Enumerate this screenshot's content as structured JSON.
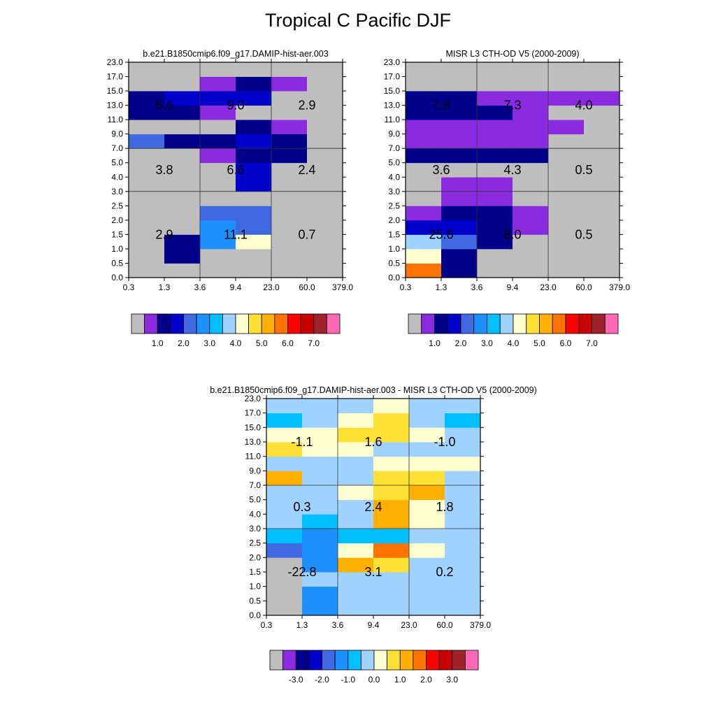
{
  "figure": {
    "title": "Tropical C Pacific DJF"
  },
  "palette": [
    "#bebebe",
    "#8a2be2",
    "#00008b",
    "#0000cd",
    "#4169e1",
    "#1e90ff",
    "#00bfff",
    "#a0d2ff",
    "#ffffd0",
    "#ffe135",
    "#ffb000",
    "#ff7400",
    "#ff0000",
    "#c80000",
    "#a0222a",
    "#ff69b4"
  ],
  "chart_data": [
    {
      "type": "heatmap",
      "title": "b.e21.B1850cmip6.f09_g17.DAMIP-hist-aer.003",
      "x_ticks": [
        "0.3",
        "1.3",
        "3.6",
        "9.4",
        "23.0",
        "60.0",
        "379.0"
      ],
      "y_ticks": [
        "0.0",
        "0.5",
        "1.0",
        "1.5",
        "2.0",
        "2.5",
        "3.0",
        "4.0",
        "5.0",
        "7.0",
        "9.0",
        "11.0",
        "13.0",
        "15.0",
        "17.0",
        "23.0"
      ],
      "cells_order": "rows bottom(0.0-0.5) to top(17.0-23.0); each row 6 optical-depth bins; value = colour level index",
      "cells": [
        [
          0,
          0,
          0,
          0,
          0,
          0
        ],
        [
          0,
          2,
          0,
          0,
          0,
          0
        ],
        [
          0,
          2,
          5,
          8,
          0,
          0
        ],
        [
          0,
          0,
          5,
          4,
          0,
          0
        ],
        [
          0,
          0,
          4,
          4,
          0,
          0
        ],
        [
          0,
          0,
          0,
          0,
          0,
          0
        ],
        [
          0,
          0,
          0,
          3,
          0,
          0
        ],
        [
          0,
          0,
          0,
          3,
          0,
          0
        ],
        [
          0,
          0,
          1,
          2,
          2,
          0
        ],
        [
          4,
          2,
          2,
          3,
          2,
          0
        ],
        [
          0,
          0,
          0,
          2,
          1,
          0
        ],
        [
          2,
          2,
          1,
          0,
          0,
          0
        ],
        [
          2,
          3,
          3,
          3,
          0,
          0
        ],
        [
          0,
          0,
          1,
          2,
          1,
          0
        ],
        [
          0,
          0,
          0,
          0,
          0,
          0
        ]
      ],
      "annotations": [
        {
          "x_bin": "0.3-3.6",
          "y_bin": "7.0-23.0",
          "text": "6.6"
        },
        {
          "x_bin": "3.6-23.0",
          "y_bin": "7.0-23.0",
          "text": "9.0"
        },
        {
          "x_bin": "23.0-379.0",
          "y_bin": "7.0-23.0",
          "text": "2.9"
        },
        {
          "x_bin": "0.3-3.6",
          "y_bin": "3.0-7.0",
          "text": "3.8"
        },
        {
          "x_bin": "3.6-23.0",
          "y_bin": "3.0-7.0",
          "text": "6.6"
        },
        {
          "x_bin": "23.0-379.0",
          "y_bin": "3.0-7.0",
          "text": "2.4"
        },
        {
          "x_bin": "0.3-3.6",
          "y_bin": "0.0-3.0",
          "text": "2.9"
        },
        {
          "x_bin": "3.6-23.0",
          "y_bin": "0.0-3.0",
          "text": "11.1"
        },
        {
          "x_bin": "23.0-379.0",
          "y_bin": "0.0-3.0",
          "text": "0.7"
        }
      ],
      "colorbar_labels": [
        "1.0",
        "2.0",
        "3.0",
        "4.0",
        "5.0",
        "6.0",
        "7.0"
      ]
    },
    {
      "type": "heatmap",
      "title": "MISR L3 CTH-OD V5 (2000-2009)",
      "x_ticks": [
        "0.3",
        "1.3",
        "3.6",
        "9.4",
        "23.0",
        "60.0",
        "379.0"
      ],
      "y_ticks": [
        "0.0",
        "0.5",
        "1.0",
        "1.5",
        "2.0",
        "2.5",
        "3.0",
        "4.0",
        "5.0",
        "7.0",
        "9.0",
        "11.0",
        "13.0",
        "15.0",
        "17.0",
        "23.0"
      ],
      "cells_order": "rows bottom(0.0-0.5) to top(17.0-23.0); each row 6 optical-depth bins; value = colour level index",
      "cells": [
        [
          11,
          2,
          0,
          0,
          0,
          0
        ],
        [
          8,
          2,
          0,
          0,
          0,
          0
        ],
        [
          7,
          4,
          2,
          0,
          0,
          0
        ],
        [
          3,
          3,
          2,
          1,
          0,
          0
        ],
        [
          1,
          2,
          2,
          1,
          0,
          0
        ],
        [
          0,
          1,
          1,
          0,
          0,
          0
        ],
        [
          0,
          1,
          1,
          0,
          0,
          0
        ],
        [
          0,
          0,
          0,
          0,
          0,
          0
        ],
        [
          2,
          2,
          2,
          2,
          0,
          0
        ],
        [
          1,
          1,
          1,
          1,
          0,
          0
        ],
        [
          1,
          1,
          1,
          1,
          1,
          0
        ],
        [
          2,
          2,
          2,
          1,
          0,
          0
        ],
        [
          2,
          2,
          1,
          1,
          1,
          1
        ],
        [
          0,
          0,
          0,
          0,
          0,
          0
        ],
        [
          0,
          0,
          0,
          0,
          0,
          0
        ]
      ],
      "annotations": [
        {
          "x_bin": "0.3-3.6",
          "y_bin": "7.0-23.0",
          "text": "7.8"
        },
        {
          "x_bin": "3.6-23.0",
          "y_bin": "7.0-23.0",
          "text": "7.3"
        },
        {
          "x_bin": "23.0-379.0",
          "y_bin": "7.0-23.0",
          "text": "4.0"
        },
        {
          "x_bin": "0.3-3.6",
          "y_bin": "3.0-7.0",
          "text": "3.6"
        },
        {
          "x_bin": "3.6-23.0",
          "y_bin": "3.0-7.0",
          "text": "4.3"
        },
        {
          "x_bin": "23.0-379.0",
          "y_bin": "3.0-7.0",
          "text": "0.5"
        },
        {
          "x_bin": "0.3-3.6",
          "y_bin": "0.0-3.0",
          "text": "25.6"
        },
        {
          "x_bin": "3.6-23.0",
          "y_bin": "0.0-3.0",
          "text": "8.0"
        },
        {
          "x_bin": "23.0-379.0",
          "y_bin": "0.0-3.0",
          "text": "0.5"
        }
      ],
      "colorbar_labels": [
        "1.0",
        "2.0",
        "3.0",
        "4.0",
        "5.0",
        "6.0",
        "7.0"
      ]
    },
    {
      "type": "heatmap",
      "title": "b.e21.B1850cmip6.f09_g17.DAMIP-hist-aer.003 - MISR L3 CTH-OD V5 (2000-2009)",
      "x_ticks": [
        "0.3",
        "1.3",
        "3.6",
        "9.4",
        "23.0",
        "60.0",
        "379.0"
      ],
      "y_ticks": [
        "0.0",
        "0.5",
        "1.0",
        "1.5",
        "2.0",
        "2.5",
        "3.0",
        "4.0",
        "5.0",
        "7.0",
        "9.0",
        "11.0",
        "13.0",
        "15.0",
        "17.0",
        "23.0"
      ],
      "cells_order": "rows bottom(0.0-0.5) to top(17.0-23.0); each row 6 optical-depth bins; value = colour level index",
      "cells": [
        [
          0,
          5,
          7,
          7,
          7,
          7
        ],
        [
          0,
          5,
          7,
          7,
          7,
          7
        ],
        [
          0,
          7,
          7,
          7,
          7,
          7
        ],
        [
          0,
          5,
          10,
          9,
          7,
          7
        ],
        [
          4,
          5,
          8,
          11,
          8,
          7
        ],
        [
          6,
          5,
          6,
          6,
          7,
          7
        ],
        [
          7,
          6,
          7,
          10,
          8,
          7
        ],
        [
          7,
          7,
          7,
          10,
          8,
          7
        ],
        [
          7,
          7,
          8,
          9,
          10,
          7
        ],
        [
          10,
          7,
          7,
          9,
          9,
          7
        ],
        [
          7,
          7,
          7,
          8,
          8,
          8
        ],
        [
          9,
          8,
          8,
          7,
          7,
          7
        ],
        [
          8,
          8,
          9,
          9,
          8,
          7
        ],
        [
          6,
          7,
          8,
          9,
          7,
          6
        ],
        [
          7,
          7,
          7,
          8,
          7,
          7
        ]
      ],
      "annotations": [
        {
          "x_bin": "0.3-3.6",
          "y_bin": "7.0-23.0",
          "text": "-1.1"
        },
        {
          "x_bin": "3.6-23.0",
          "y_bin": "7.0-23.0",
          "text": "1.6"
        },
        {
          "x_bin": "23.0-379.0",
          "y_bin": "7.0-23.0",
          "text": "-1.0"
        },
        {
          "x_bin": "0.3-3.6",
          "y_bin": "3.0-7.0",
          "text": "0.3"
        },
        {
          "x_bin": "3.6-23.0",
          "y_bin": "3.0-7.0",
          "text": "2.4"
        },
        {
          "x_bin": "23.0-379.0",
          "y_bin": "3.0-7.0",
          "text": "1.8"
        },
        {
          "x_bin": "0.3-3.6",
          "y_bin": "0.0-3.0",
          "text": "-22.8"
        },
        {
          "x_bin": "3.6-23.0",
          "y_bin": "0.0-3.0",
          "text": "3.1"
        },
        {
          "x_bin": "23.0-379.0",
          "y_bin": "0.0-3.0",
          "text": "0.2"
        }
      ],
      "colorbar_labels": [
        "-3.0",
        "-2.0",
        "-1.0",
        "0.0",
        "1.0",
        "2.0",
        "3.0"
      ]
    }
  ]
}
